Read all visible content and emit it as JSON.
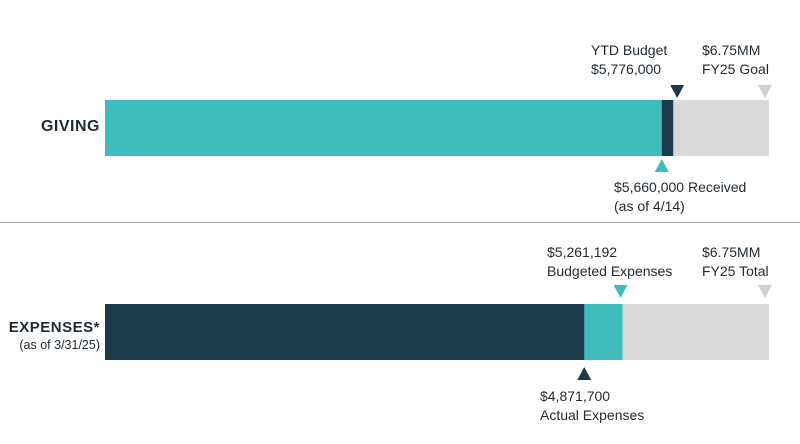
{
  "colors": {
    "teal": "#3fbdbd",
    "navy": "#1b3a4c",
    "gray": "#d9d9d9",
    "goal_marker": "#d0d0d0"
  },
  "chart_data": [
    {
      "type": "bar",
      "orientation": "horizontal",
      "row_label": "GIVING",
      "scale_max": 6750000,
      "segments": [
        {
          "label": "Received",
          "value": 5660000,
          "color": "#3fbdbd"
        },
        {
          "label": "YTD Budget",
          "value": 5776000,
          "color": "#1b3a4c"
        },
        {
          "label": "FY25 Goal",
          "value": 6750000,
          "color": "#d9d9d9"
        }
      ],
      "annotations": {
        "budget_line1": "YTD Budget",
        "budget_line2": "$5,776,000",
        "goal_line1": "$6.75MM",
        "goal_line2": "FY25 Goal",
        "received_line1": "$5,660,000 Received",
        "received_line2": "(as of 4/14)"
      }
    },
    {
      "type": "bar",
      "orientation": "horizontal",
      "row_label": "EXPENSES*",
      "row_sublabel": "(as of 3/31/25)",
      "scale_max": 6750000,
      "segments": [
        {
          "label": "Actual Expenses",
          "value": 4871700,
          "color": "#1b3a4c"
        },
        {
          "label": "Budgeted Expenses",
          "value": 5261192,
          "color": "#3fbdbd"
        },
        {
          "label": "FY25 Total",
          "value": 6750000,
          "color": "#d9d9d9"
        }
      ],
      "annotations": {
        "budget_line1": "$5,261,192",
        "budget_line2": "Budgeted Expenses",
        "goal_line1": "$6.75MM",
        "goal_line2": "FY25 Total",
        "actual_line1": "$4,871,700",
        "actual_line2": "Actual Expenses"
      }
    }
  ]
}
